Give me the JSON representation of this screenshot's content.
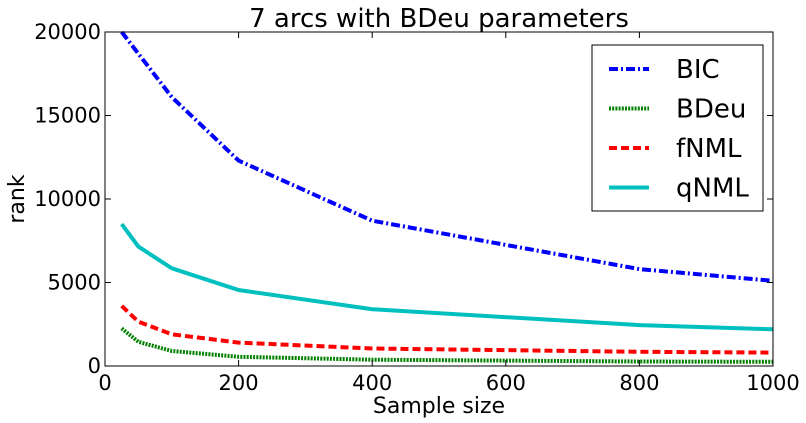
{
  "chart_data": {
    "type": "line",
    "title": "7 arcs with BDeu parameters",
    "xlabel": "Sample size",
    "ylabel": "rank",
    "xlim": [
      0,
      1000
    ],
    "ylim": [
      0,
      20000
    ],
    "xticks": [
      "0",
      "200",
      "400",
      "600",
      "800",
      "1000"
    ],
    "yticks": [
      "0",
      "5000",
      "10000",
      "15000",
      "20000"
    ],
    "grid": false,
    "legend_position": "top-right",
    "x": [
      25,
      50,
      100,
      200,
      400,
      800,
      1000
    ],
    "series": [
      {
        "name": "BIC",
        "color": "#0000ff",
        "style": "dash-dot",
        "values": [
          20000,
          18700,
          16100,
          12300,
          8700,
          5800,
          5100
        ]
      },
      {
        "name": "BDeu",
        "color": "#007f00",
        "style": "dotted",
        "values": [
          2250,
          1450,
          900,
          550,
          380,
          270,
          250
        ]
      },
      {
        "name": "fNML",
        "color": "#ff0000",
        "style": "dashed",
        "values": [
          3600,
          2650,
          1900,
          1400,
          1050,
          850,
          800
        ]
      },
      {
        "name": "qNML",
        "color": "#00bfbf",
        "style": "solid",
        "values": [
          8500,
          7150,
          5850,
          4550,
          3400,
          2450,
          2200
        ]
      }
    ]
  }
}
